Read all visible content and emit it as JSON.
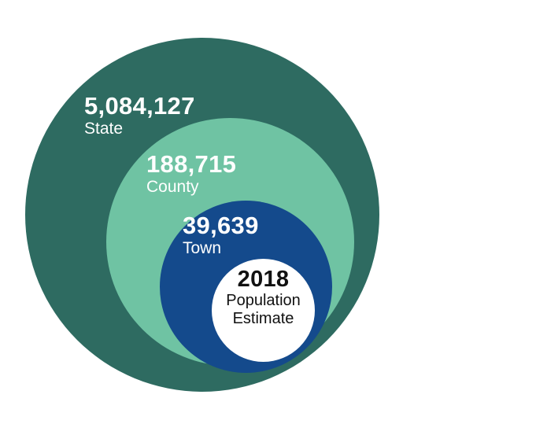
{
  "colors": {
    "state": "#2e6b61",
    "county": "#6fc3a3",
    "town": "#144a8c",
    "year": "#ffffff"
  },
  "state": {
    "value": "5,084,127",
    "label": "State"
  },
  "county": {
    "value": "188,715",
    "label": "County"
  },
  "town": {
    "value": "39,639",
    "label": "Town"
  },
  "center": {
    "year": "2018",
    "line1": "Population",
    "line2": "Estimate"
  }
}
